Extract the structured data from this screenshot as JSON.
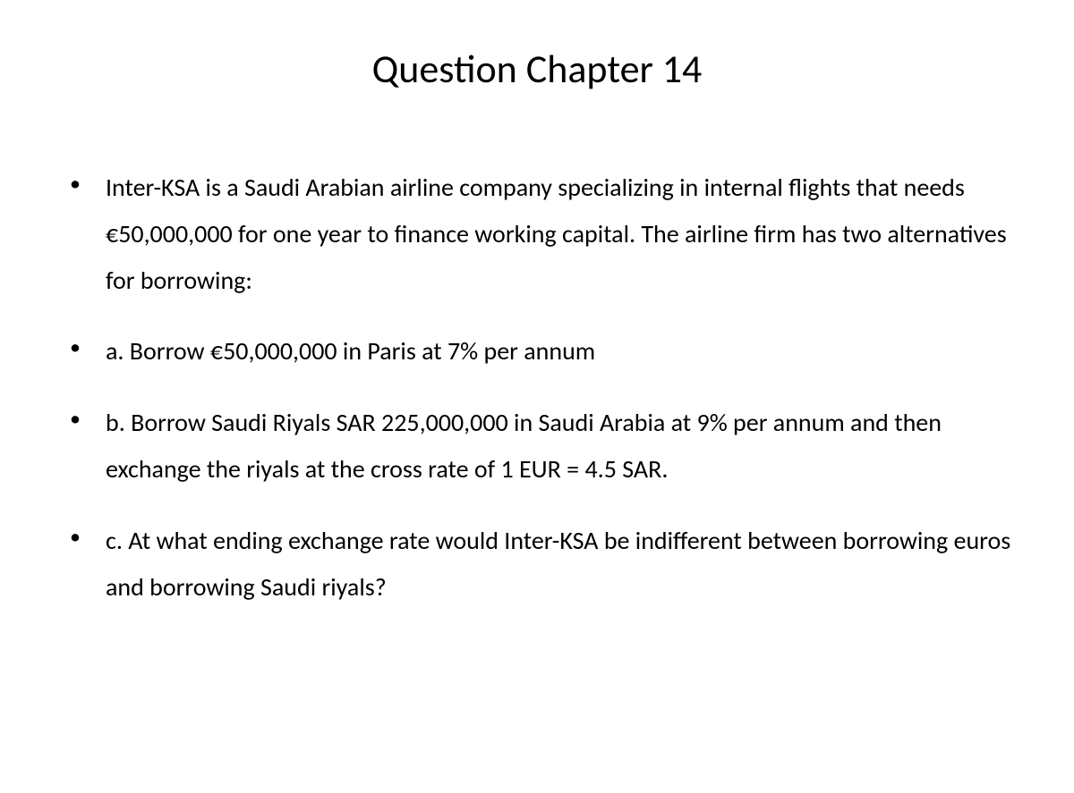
{
  "title": "Question Chapter 14",
  "bullets": [
    "Inter-KSA is a Saudi Arabian airline company specializing in internal flights that needs €50,000,000 for one year to finance working capital. The airline firm has two alternatives for borrowing:",
    "a. Borrow €50,000,000 in Paris at 7% per annum",
    "b. Borrow Saudi Riyals SAR 225,000,000 in Saudi Arabia at 9% per annum and then exchange the riyals at the cross rate of 1 EUR = 4.5 SAR.",
    "c. At what ending exchange rate would Inter-KSA be indifferent between borrowing euros and borrowing Saudi riyals?"
  ],
  "colors": {
    "background": "#ffffff",
    "text": "#000000"
  },
  "typography": {
    "title_fontsize": 44,
    "body_fontsize": 28,
    "font_family": "Calibri"
  }
}
